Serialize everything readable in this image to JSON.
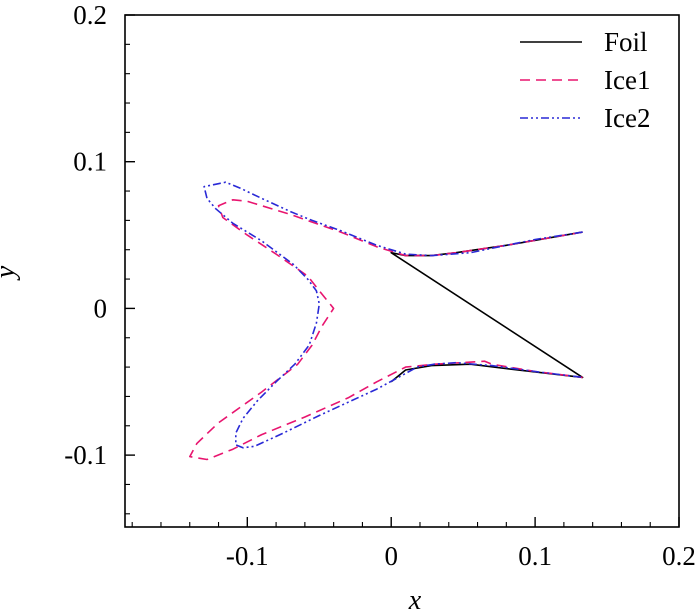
{
  "chart_data": {
    "type": "line",
    "title": "",
    "xlabel": "x",
    "ylabel": "y",
    "xlim": [
      -0.185,
      0.2
    ],
    "ylim": [
      -0.149,
      0.2
    ],
    "xticks": [
      -0.1,
      0,
      0.1,
      0.2
    ],
    "xtick_labels": [
      "-0.1",
      "0",
      "0.1",
      "0.2"
    ],
    "yticks": [
      -0.1,
      0,
      0.1,
      0.2
    ],
    "ytick_labels": [
      "-0.1",
      "0",
      "0.1",
      "0.2"
    ],
    "grid": false,
    "legend_position": "top-right",
    "series": [
      {
        "name": "Foil",
        "color": "#000000",
        "dash": "solid",
        "points": [
          [
            0.133,
            0.052
          ],
          [
            0.08,
            0.043
          ],
          [
            0.045,
            0.038
          ],
          [
            0.028,
            0.036
          ],
          [
            0.01,
            0.036
          ],
          [
            0.0,
            0.038
          ],
          [
            0.133,
            -0.047
          ],
          [
            0.08,
            -0.041
          ],
          [
            0.055,
            -0.038
          ],
          [
            0.028,
            -0.039
          ],
          [
            0.01,
            -0.042
          ],
          [
            0.0,
            -0.05
          ]
        ]
      },
      {
        "name": "Ice1",
        "color": "#e8156f",
        "dash": "dashed",
        "points": [
          [
            0.133,
            0.052
          ],
          [
            0.08,
            0.043
          ],
          [
            0.045,
            0.038
          ],
          [
            0.028,
            0.036
          ],
          [
            0.01,
            0.036
          ],
          [
            -0.01,
            0.042
          ],
          [
            -0.035,
            0.052
          ],
          [
            -0.07,
            0.064
          ],
          [
            -0.1,
            0.073
          ],
          [
            -0.11,
            0.074
          ],
          [
            -0.12,
            0.07
          ],
          [
            -0.117,
            0.062
          ],
          [
            -0.1,
            0.05
          ],
          [
            -0.08,
            0.037
          ],
          [
            -0.058,
            0.022
          ],
          [
            -0.05,
            0.012
          ],
          [
            -0.04,
            0.0
          ],
          [
            -0.048,
            -0.012
          ],
          [
            -0.055,
            -0.025
          ],
          [
            -0.065,
            -0.038
          ],
          [
            -0.09,
            -0.057
          ],
          [
            -0.12,
            -0.078
          ],
          [
            -0.135,
            -0.092
          ],
          [
            -0.14,
            -0.101
          ],
          [
            -0.128,
            -0.103
          ],
          [
            -0.11,
            -0.096
          ],
          [
            -0.09,
            -0.086
          ],
          [
            -0.06,
            -0.074
          ],
          [
            -0.03,
            -0.061
          ],
          [
            -0.01,
            -0.05
          ],
          [
            0.01,
            -0.04
          ],
          [
            0.03,
            -0.038
          ],
          [
            0.048,
            -0.037
          ],
          [
            0.065,
            -0.036
          ],
          [
            0.07,
            -0.038
          ],
          [
            0.1,
            -0.043
          ],
          [
            0.133,
            -0.047
          ]
        ]
      },
      {
        "name": "Ice2",
        "color": "#2929d6",
        "dash": "dashdotdot",
        "points": [
          [
            0.133,
            0.052
          ],
          [
            0.1,
            0.047
          ],
          [
            0.075,
            0.042
          ],
          [
            0.055,
            0.038
          ],
          [
            0.028,
            0.036
          ],
          [
            0.01,
            0.037
          ],
          [
            -0.01,
            0.043
          ],
          [
            -0.035,
            0.053
          ],
          [
            -0.055,
            0.06
          ],
          [
            -0.07,
            0.066
          ],
          [
            -0.09,
            0.075
          ],
          [
            -0.105,
            0.082
          ],
          [
            -0.115,
            0.086
          ],
          [
            -0.12,
            0.085
          ],
          [
            -0.13,
            0.083
          ],
          [
            -0.128,
            0.075
          ],
          [
            -0.122,
            0.068
          ],
          [
            -0.11,
            0.058
          ],
          [
            -0.09,
            0.046
          ],
          [
            -0.068,
            0.03
          ],
          [
            -0.058,
            0.02
          ],
          [
            -0.052,
            0.012
          ],
          [
            -0.05,
            0.003
          ],
          [
            -0.052,
            -0.01
          ],
          [
            -0.057,
            -0.025
          ],
          [
            -0.067,
            -0.038
          ],
          [
            -0.08,
            -0.05
          ],
          [
            -0.093,
            -0.063
          ],
          [
            -0.103,
            -0.075
          ],
          [
            -0.108,
            -0.085
          ],
          [
            -0.108,
            -0.093
          ],
          [
            -0.103,
            -0.095
          ],
          [
            -0.095,
            -0.094
          ],
          [
            -0.075,
            -0.085
          ],
          [
            -0.05,
            -0.073
          ],
          [
            -0.03,
            -0.064
          ],
          [
            -0.01,
            -0.055
          ],
          [
            0.005,
            -0.047
          ],
          [
            0.018,
            -0.04
          ],
          [
            0.03,
            -0.038
          ],
          [
            0.045,
            -0.037
          ],
          [
            0.07,
            -0.039
          ],
          [
            0.1,
            -0.043
          ],
          [
            0.133,
            -0.047
          ]
        ]
      }
    ]
  }
}
